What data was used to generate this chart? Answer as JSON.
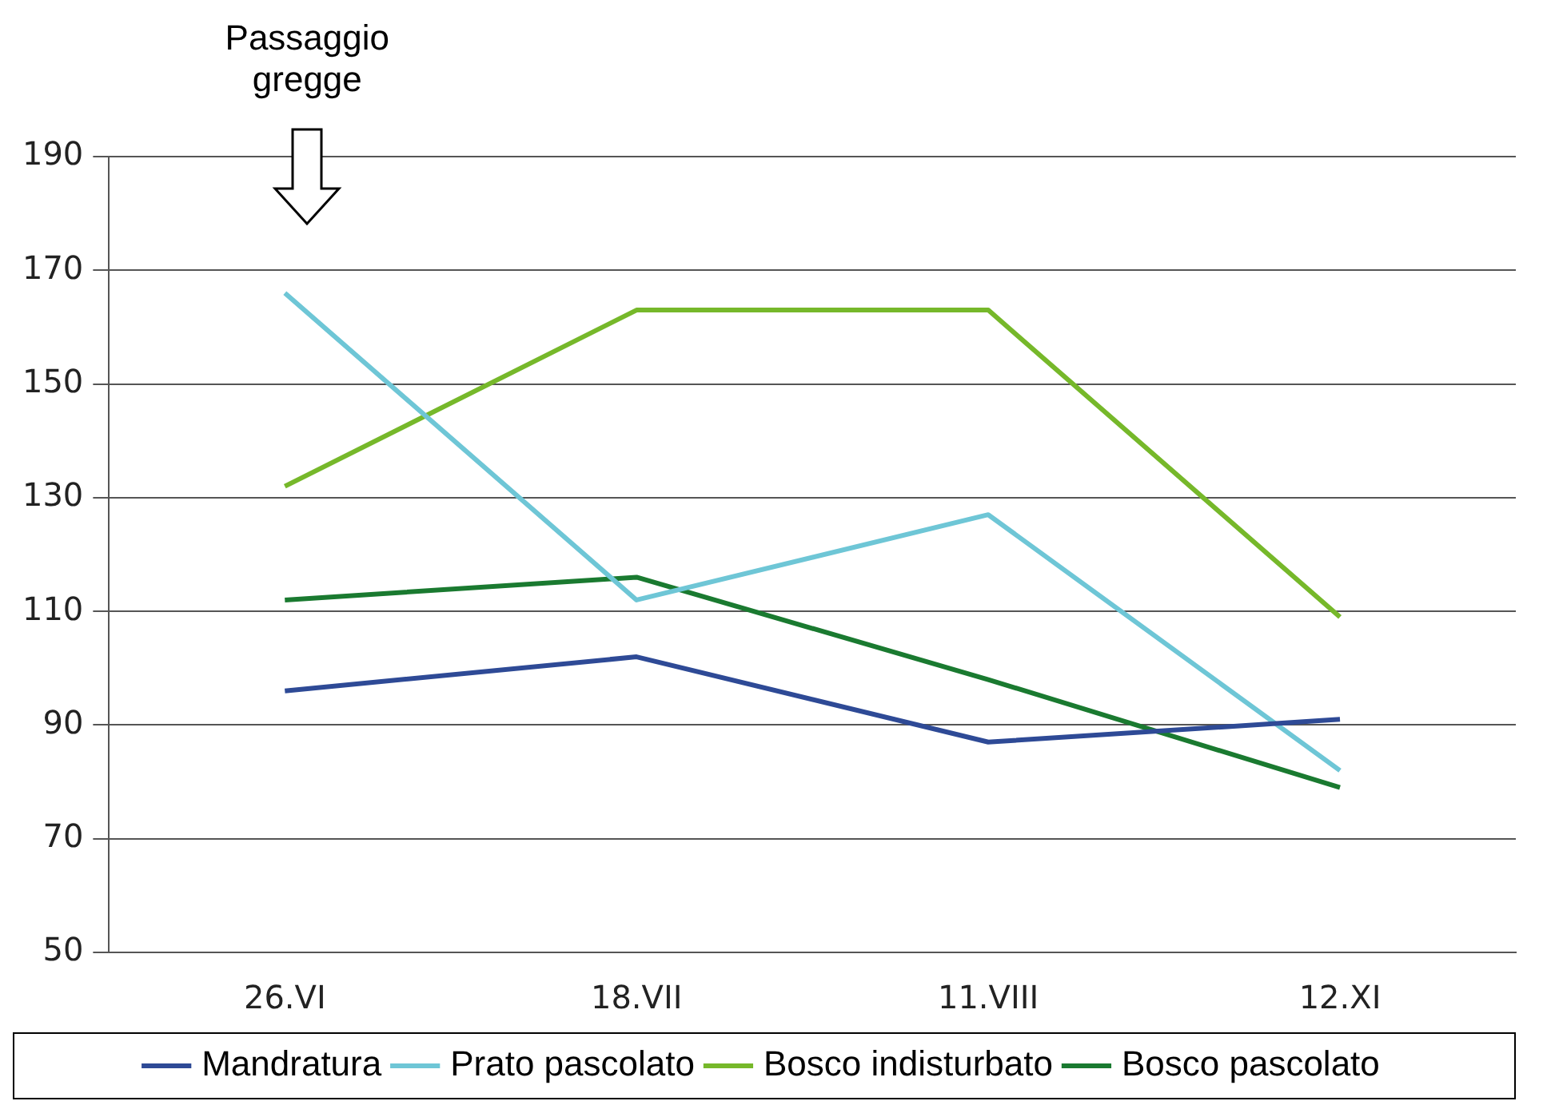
{
  "chart_data": {
    "type": "line",
    "categories": [
      "26.VI",
      "18.VII",
      "11.VIII",
      "12.XI"
    ],
    "series": [
      {
        "name": "Mandratura",
        "color": "#2e4a96",
        "values": [
          96,
          102,
          87,
          91
        ]
      },
      {
        "name": "Prato pascolato",
        "color": "#6ec6d6",
        "values": [
          166,
          112,
          127,
          82
        ]
      },
      {
        "name": "Bosco indisturbato",
        "color": "#76b82a",
        "values": [
          132,
          163,
          163,
          109
        ]
      },
      {
        "name": "Bosco pascolato",
        "color": "#1a7a30",
        "values": [
          112,
          116,
          98,
          79
        ]
      }
    ],
    "ylim": [
      50,
      190
    ],
    "yticks": [
      50,
      70,
      90,
      110,
      130,
      150,
      170,
      190
    ],
    "grid": "y",
    "legend": "bottom",
    "marker": "none",
    "line_style": "solid",
    "annotations": [
      "Passaggio\ngregge"
    ]
  }
}
